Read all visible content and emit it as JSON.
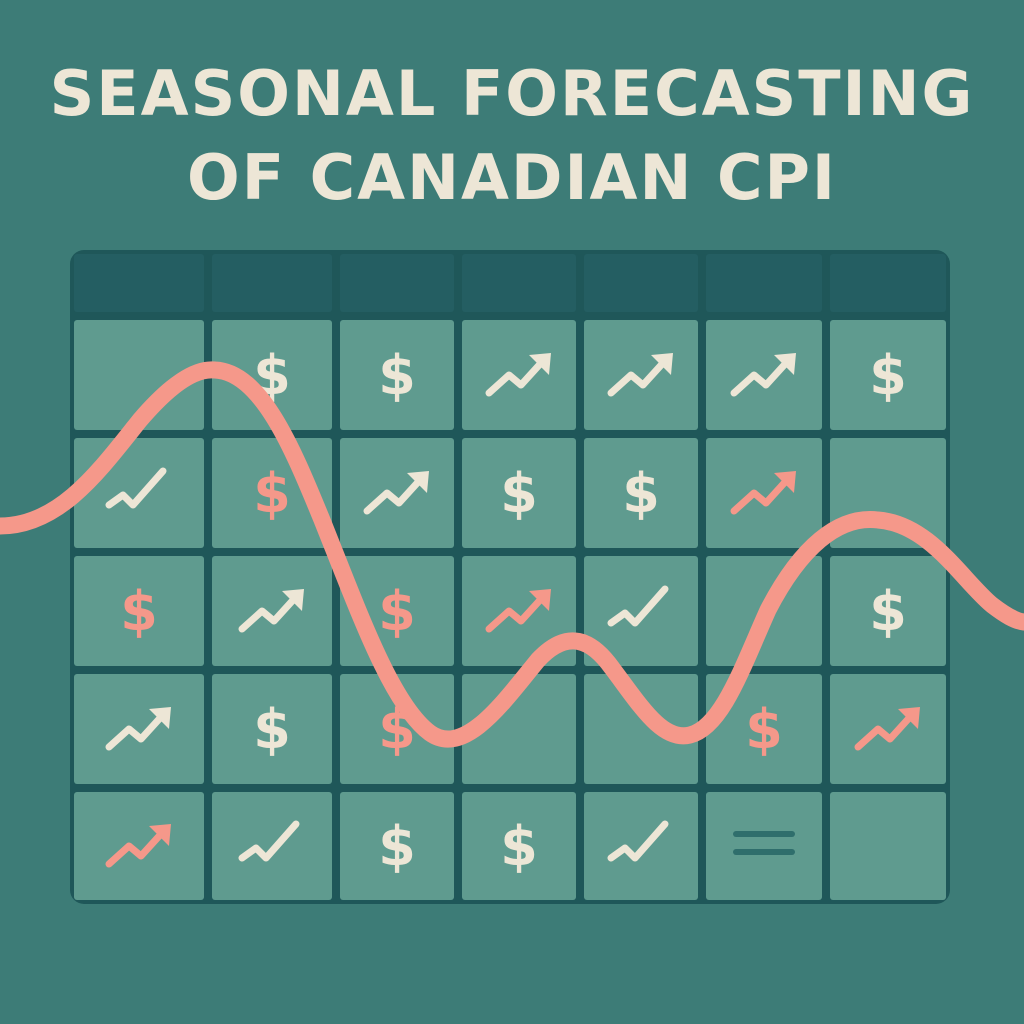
{
  "title": {
    "line1": "SEASONAL FORECASTING",
    "line2": "OF CANADIAN CPI"
  },
  "colors": {
    "background": "#3d7c77",
    "header_cells": "#245e62",
    "body_cells": "#5f9b8f",
    "grid_lines": "#1f5759",
    "accent_curve": "#f5988a",
    "icon_light": "#ede6d6",
    "icon_accent": "#f5988a",
    "equals_icon": "#2f6e6c"
  },
  "grid": {
    "columns": 7,
    "header_rows": 1,
    "body_rows": 5,
    "cells": [
      [
        {
          "icon": "empty"
        },
        {
          "icon": "dollar-icon",
          "color": "light"
        },
        {
          "icon": "dollar-icon",
          "color": "light"
        },
        {
          "icon": "trend-up-icon",
          "color": "light"
        },
        {
          "icon": "trend-up-icon",
          "color": "light"
        },
        {
          "icon": "trend-up-icon",
          "color": "light"
        },
        {
          "icon": "dollar-icon",
          "color": "light"
        }
      ],
      [
        {
          "icon": "trend-check-icon",
          "color": "light"
        },
        {
          "icon": "dollar-icon",
          "color": "accent"
        },
        {
          "icon": "trend-up-icon",
          "color": "light"
        },
        {
          "icon": "dollar-icon",
          "color": "light"
        },
        {
          "icon": "dollar-icon",
          "color": "light"
        },
        {
          "icon": "trend-up-icon",
          "color": "accent"
        },
        {
          "icon": "empty"
        }
      ],
      [
        {
          "icon": "dollar-icon",
          "color": "accent"
        },
        {
          "icon": "trend-up-icon",
          "color": "light"
        },
        {
          "icon": "dollar-icon",
          "color": "accent"
        },
        {
          "icon": "trend-up-icon",
          "color": "accent"
        },
        {
          "icon": "trend-check-icon",
          "color": "light"
        },
        {
          "icon": "empty"
        },
        {
          "icon": "dollar-icon",
          "color": "light"
        }
      ],
      [
        {
          "icon": "trend-up-icon",
          "color": "light"
        },
        {
          "icon": "dollar-icon",
          "color": "light"
        },
        {
          "icon": "dollar-icon",
          "color": "accent"
        },
        {
          "icon": "empty"
        },
        {
          "icon": "empty"
        },
        {
          "icon": "dollar-icon",
          "color": "accent"
        },
        {
          "icon": "trend-up-icon",
          "color": "accent"
        }
      ],
      [
        {
          "icon": "trend-up-icon",
          "color": "accent"
        },
        {
          "icon": "trend-check-icon",
          "color": "light"
        },
        {
          "icon": "dollar-icon",
          "color": "light"
        },
        {
          "icon": "dollar-icon",
          "color": "light"
        },
        {
          "icon": "trend-check-icon",
          "color": "light"
        },
        {
          "icon": "equals-icon",
          "color": "dark"
        },
        {
          "icon": "empty"
        }
      ]
    ]
  },
  "dollar_glyph": "$"
}
